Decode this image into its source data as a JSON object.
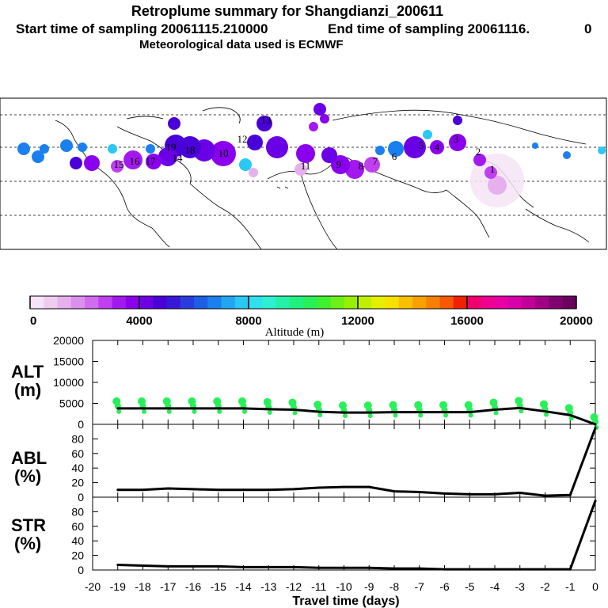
{
  "header": {
    "title": "Retroplume summary for Shangdianzi_200611",
    "start_label": "Start time of sampling 20061115.210000",
    "end_label": "End time of sampling 20061116.",
    "end_value": "0",
    "met_label": "Meteorological data used is ECMWF"
  },
  "colorbar": {
    "ticks": [
      "0",
      "4000",
      "8000",
      "12000",
      "16000",
      "20000"
    ],
    "label": "Altitude (m)",
    "colors": [
      "#f5e4f5",
      "#eeccee",
      "#e6b0ee",
      "#dc90ee",
      "#d06cee",
      "#c040f0",
      "#a418f0",
      "#8a00ee",
      "#6e00e6",
      "#4c00d8",
      "#3818d8",
      "#2a3ce0",
      "#1c5ee6",
      "#1a80ee",
      "#22a6f4",
      "#2ac8f4",
      "#30e0ee",
      "#2cf0d0",
      "#24f0a8",
      "#20f080",
      "#28f058",
      "#40f030",
      "#6cf018",
      "#98f000",
      "#c0f000",
      "#e4f000",
      "#f8e000",
      "#f8c000",
      "#f8a000",
      "#f88000",
      "#f85800",
      "#f02000",
      "#f0006c",
      "#f00090",
      "#e800a4",
      "#d800a8",
      "#c00098",
      "#a00084",
      "#800070",
      "#6a005e"
    ]
  },
  "map": {
    "days": [
      "19",
      "18",
      "17",
      "16",
      "15",
      "14",
      "13",
      "12",
      "11",
      "10",
      "9",
      "8",
      "7",
      "6",
      "5",
      "4",
      "3",
      "2",
      "1"
    ]
  },
  "chart_data": [
    {
      "type": "line",
      "title": "ALT",
      "ylabel": "ALT (m)",
      "xlabel": "Travel time (days)",
      "x": [
        -19,
        -18,
        -17,
        -16,
        -15,
        -14,
        -13,
        -12,
        -11,
        -10,
        -9,
        -8,
        -7,
        -6,
        -5,
        -4,
        -3,
        -2,
        -1,
        0
      ],
      "values": [
        3800,
        3800,
        3800,
        3800,
        3800,
        3800,
        3600,
        3500,
        3000,
        2800,
        2800,
        2900,
        2900,
        2900,
        2900,
        3500,
        3900,
        3100,
        2200,
        0
      ],
      "ylim": [
        0,
        20000
      ],
      "yticks": [
        0,
        5000,
        10000,
        15000,
        20000
      ],
      "xticks": [
        -20,
        -19,
        -18,
        -17,
        -16,
        -15,
        -14,
        -13,
        -12,
        -11,
        -10,
        -9,
        -8,
        -7,
        -6,
        -5,
        -4,
        -3,
        -2,
        -1,
        0
      ],
      "xtick_labels": [
        "-20",
        "-19",
        "-18",
        "-17",
        "-16",
        "-15",
        "-14",
        "-13",
        "-12",
        "-11",
        "-10",
        "-9",
        "-8",
        "-7",
        "-6",
        "-5",
        "-4",
        "-3",
        "-2",
        "-1",
        "0"
      ],
      "scatter_color": "#28f058"
    },
    {
      "type": "line",
      "title": "ABL",
      "ylabel": "ABL (%)",
      "x": [
        -19,
        -18,
        -17,
        -16,
        -15,
        -14,
        -13,
        -12,
        -11,
        -10,
        -9,
        -8,
        -7,
        -6,
        -5,
        -4,
        -3,
        -2,
        -1,
        0
      ],
      "values": [
        10,
        10,
        12,
        11,
        10,
        10,
        10,
        11,
        13,
        14,
        14,
        8,
        7,
        5,
        4,
        4,
        6,
        2,
        3,
        95
      ],
      "ylim": [
        0,
        100
      ],
      "yticks": [
        0,
        20,
        40,
        60,
        80
      ]
    },
    {
      "type": "line",
      "title": "STR",
      "ylabel": "STR (%)",
      "x": [
        -19,
        -18,
        -17,
        -16,
        -15,
        -14,
        -13,
        -12,
        -11,
        -10,
        -9,
        -8,
        -7,
        -6,
        -5,
        -4,
        -3,
        -2,
        -1,
        0
      ],
      "values": [
        7,
        6,
        5,
        5,
        5,
        4,
        4,
        4,
        3,
        3,
        3,
        2,
        2,
        1,
        1,
        1,
        1,
        1,
        1,
        95
      ],
      "ylim": [
        0,
        100
      ],
      "yticks": [
        0,
        20,
        40,
        60,
        80
      ]
    }
  ],
  "labels": {
    "alt_top": "ALT",
    "alt_unit": "(m)",
    "abl_top": "ABL",
    "abl_unit": "(%)",
    "str_top": "STR",
    "str_unit": "(%)"
  }
}
